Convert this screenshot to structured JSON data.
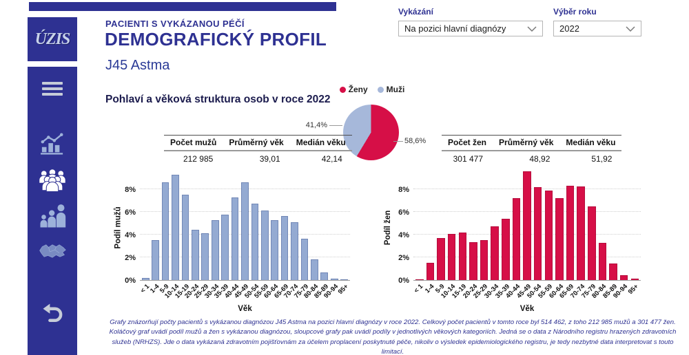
{
  "sidebar": {
    "logo_text": "ÚZIS",
    "icons": [
      "hamburger-menu-icon",
      "stats-trend-chart-icon",
      "population-crowd-icon",
      "family-age-groups-icon",
      "czech-republic-map-icon",
      "undo-back-arrow-icon"
    ],
    "active_icon": "population-crowd-icon"
  },
  "header": {
    "eyebrow": "PACIENTI S VYKÁZANOU PÉČÍ",
    "title": "DEMOGRAFICKÝ PROFIL",
    "subtitle": "J45 Astma"
  },
  "controls": {
    "reporting": {
      "label": "Vykázání",
      "value": "Na pozici hlavní diagnózy"
    },
    "year": {
      "label": "Výběr roku",
      "value": "2022"
    }
  },
  "section_title": "Pohlaví a věková struktura osob v roce 2022",
  "tables": {
    "men": {
      "headers": [
        "Počet mužů",
        "Průměrný věk",
        "Medián věku"
      ],
      "values": [
        "212 985",
        "39,01",
        "42,14"
      ]
    },
    "women": {
      "headers": [
        "Počet žen",
        "Průměrný věk",
        "Medián věku"
      ],
      "values": [
        "301 477",
        "48,92",
        "51,92"
      ]
    }
  },
  "chart_data": [
    {
      "type": "pie",
      "labels": [
        "Ženy",
        "Muži"
      ],
      "values": [
        58.6,
        41.4
      ],
      "display_labels": [
        "58,6%",
        "41,4%"
      ],
      "colors": [
        "#d60f47",
        "#a6b8da"
      ],
      "legend_position": "top"
    },
    {
      "type": "bar",
      "ylabel": "Podíl mužů",
      "xlabel": "Věk",
      "categories": [
        "< 1",
        "1-4",
        "5-9",
        "10-14",
        "15-19",
        "20-24",
        "25-29",
        "30-34",
        "35-39",
        "40-44",
        "45-49",
        "50-54",
        "55-59",
        "60-64",
        "65-69",
        "70-74",
        "75-79",
        "80-84",
        "85-89",
        "90-94",
        "95+"
      ],
      "values": [
        0.2,
        3.5,
        8.6,
        9.3,
        7.5,
        4.4,
        4.15,
        5.3,
        5.75,
        7.3,
        8.6,
        6.7,
        6.1,
        5.25,
        5.65,
        5.1,
        3.65,
        1.8,
        0.65,
        0.15,
        0.05
      ],
      "ylim": [
        0,
        10
      ],
      "yticks": [
        0,
        2,
        4,
        6,
        8
      ],
      "grid": true,
      "color": "#94aad2",
      "border_color": "#7187b6"
    },
    {
      "type": "bar",
      "ylabel": "Podíl žen",
      "xlabel": "Věk",
      "categories": [
        "< 1",
        "1-4",
        "5-9",
        "10-14",
        "15-19",
        "20-24",
        "25-29",
        "30-34",
        "35-39",
        "40-44",
        "45-49",
        "50-54",
        "55-59",
        "60-64",
        "65-69",
        "70-74",
        "75-79",
        "80-84",
        "85-89",
        "90-94",
        "95+"
      ],
      "values": [
        0.05,
        1.5,
        3.7,
        4.05,
        4.2,
        3.35,
        3.5,
        4.75,
        5.4,
        7.2,
        9.6,
        8.2,
        7.9,
        7.2,
        8.3,
        8.25,
        6.5,
        3.3,
        1.45,
        0.45,
        0.1
      ],
      "ylim": [
        0,
        10
      ],
      "yticks": [
        0,
        2,
        4,
        6,
        8
      ],
      "grid": true,
      "color": "#d60f47",
      "border_color": "#b50d3c"
    }
  ],
  "footer": "Grafy znázorňují počty pacientů s vykázanou diagnózou J45 Astma na pozici hlavní diagnózy v roce 2022. Celkový počet pacientů v tomto roce byl 514 462, z toho 212 985 mužů a 301 477 žen. Koláčový graf uvádí podíl mužů a žen s vykázanou diagnózou, sloupcové grafy pak uvádí podíly v jednotlivých věkových kategoriích. Jedná se o data z Národního registru hrazených zdravotních služeb (NRHZS). Jde o data vykázaná zdravotním pojišťovnám za účelem proplacení poskytnuté péče, nikoliv o výsledek epidemiologického registru, je tedy nezbytné data interpretovat s touto limitací."
}
